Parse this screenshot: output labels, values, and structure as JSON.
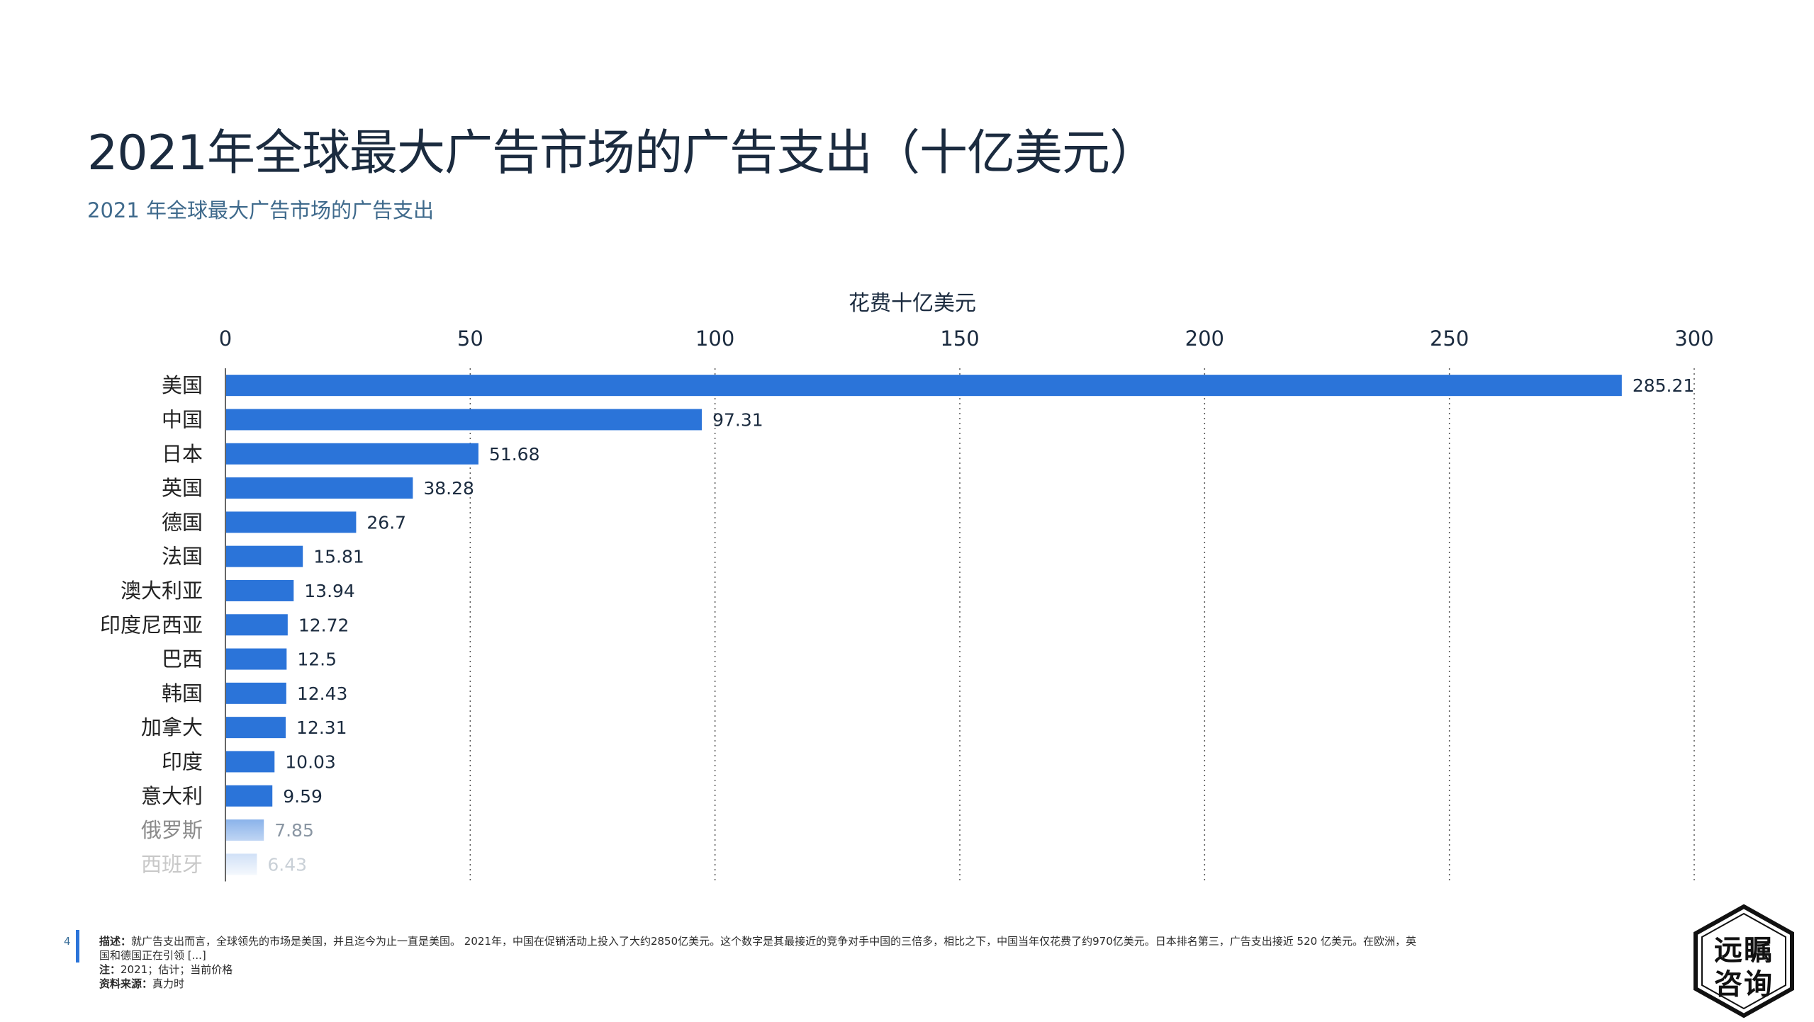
{
  "title": "2021年全球最大广告市场的广告支出（十亿美元）",
  "subtitle": "2021 年全球最大广告市场的广告支出",
  "page_number": "4",
  "footer": {
    "desc_label": "描述：",
    "desc_text": "就广告支出而言，全球领先的市场是美国，并且迄今为止一直是美国。 2021年，中国在促销活动上投入了大约2850亿美元。这个数字是其最接近的竞争对手中国的三倍多，相比之下，中国当年仅花费了约970亿美元。日本排名第三，广告支出接近 520 亿美元。在欧洲，英",
    "desc_text2": "国和德国正在引领 [...]",
    "note_label": "注：",
    "note_text": "2021；估计；当前价格",
    "source_label": "资料来源：",
    "source_text": "真力时"
  },
  "logo": {
    "line1": "远瞩",
    "line2": "咨询"
  },
  "colors": {
    "bar": "#2b74d9",
    "title": "#1b2b3f",
    "subtitle": "#3f6a8c"
  },
  "chart_data": {
    "type": "bar",
    "orientation": "horizontal",
    "xlabel": "花费十亿美元",
    "xlim": [
      0,
      300
    ],
    "xticks": [
      0,
      50,
      100,
      150,
      200,
      250,
      300
    ],
    "grid": "vertical-dotted",
    "categories": [
      "美国",
      "中国",
      "日本",
      "英国",
      "德国",
      "法国",
      "澳大利亚",
      "印度尼西亚",
      "巴西",
      "韩国",
      "加拿大",
      "印度",
      "意大利",
      "俄罗斯",
      "西班牙"
    ],
    "values": [
      285.21,
      97.31,
      51.68,
      38.28,
      26.7,
      15.81,
      13.94,
      12.72,
      12.5,
      12.43,
      12.31,
      10.03,
      9.59,
      7.85,
      6.43
    ],
    "value_labels": [
      "285.21",
      "97.31",
      "51.68",
      "38.28",
      "26.7",
      "15.81",
      "13.94",
      "12.72",
      "12.5",
      "12.43",
      "12.31",
      "10.03",
      "9.59",
      "7.85",
      "6.43"
    ]
  }
}
